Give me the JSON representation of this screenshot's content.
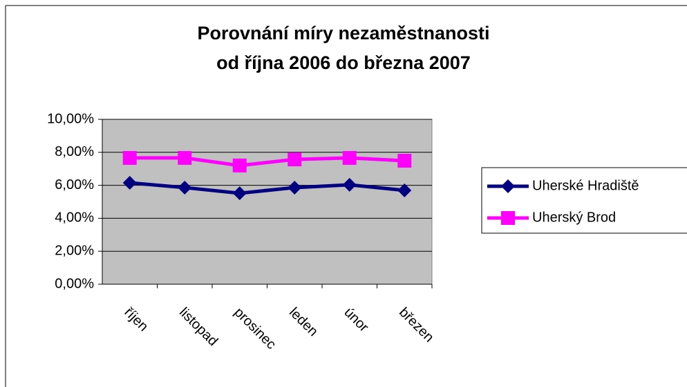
{
  "chart_data": {
    "type": "line",
    "title": [
      "Porovnání míry nezaměstnanosti",
      "od října 2006 do března 2007"
    ],
    "categories": [
      "říjen",
      "listopad",
      "prosinec",
      "leden",
      "únor",
      "březen"
    ],
    "series": [
      {
        "name": "Uherské Hradiště",
        "color": "#000080",
        "marker": "diamond",
        "values": [
          6.15,
          5.86,
          5.52,
          5.86,
          6.03,
          5.69
        ]
      },
      {
        "name": "Uherský Brod",
        "color": "#ff00ff",
        "marker": "square",
        "values": [
          7.66,
          7.66,
          7.2,
          7.57,
          7.66,
          7.49
        ]
      }
    ],
    "ylim": [
      0,
      10
    ],
    "yticks": [
      {
        "value": 0,
        "label": "0,00%"
      },
      {
        "value": 2,
        "label": "2,00%"
      },
      {
        "value": 4,
        "label": "4,00%"
      },
      {
        "value": 6,
        "label": "6,00%"
      },
      {
        "value": 8,
        "label": "8,00%"
      },
      {
        "value": 10,
        "label": "10,00%"
      }
    ],
    "grid": true,
    "legend": "right",
    "plot_background": "#c0c0c0"
  }
}
